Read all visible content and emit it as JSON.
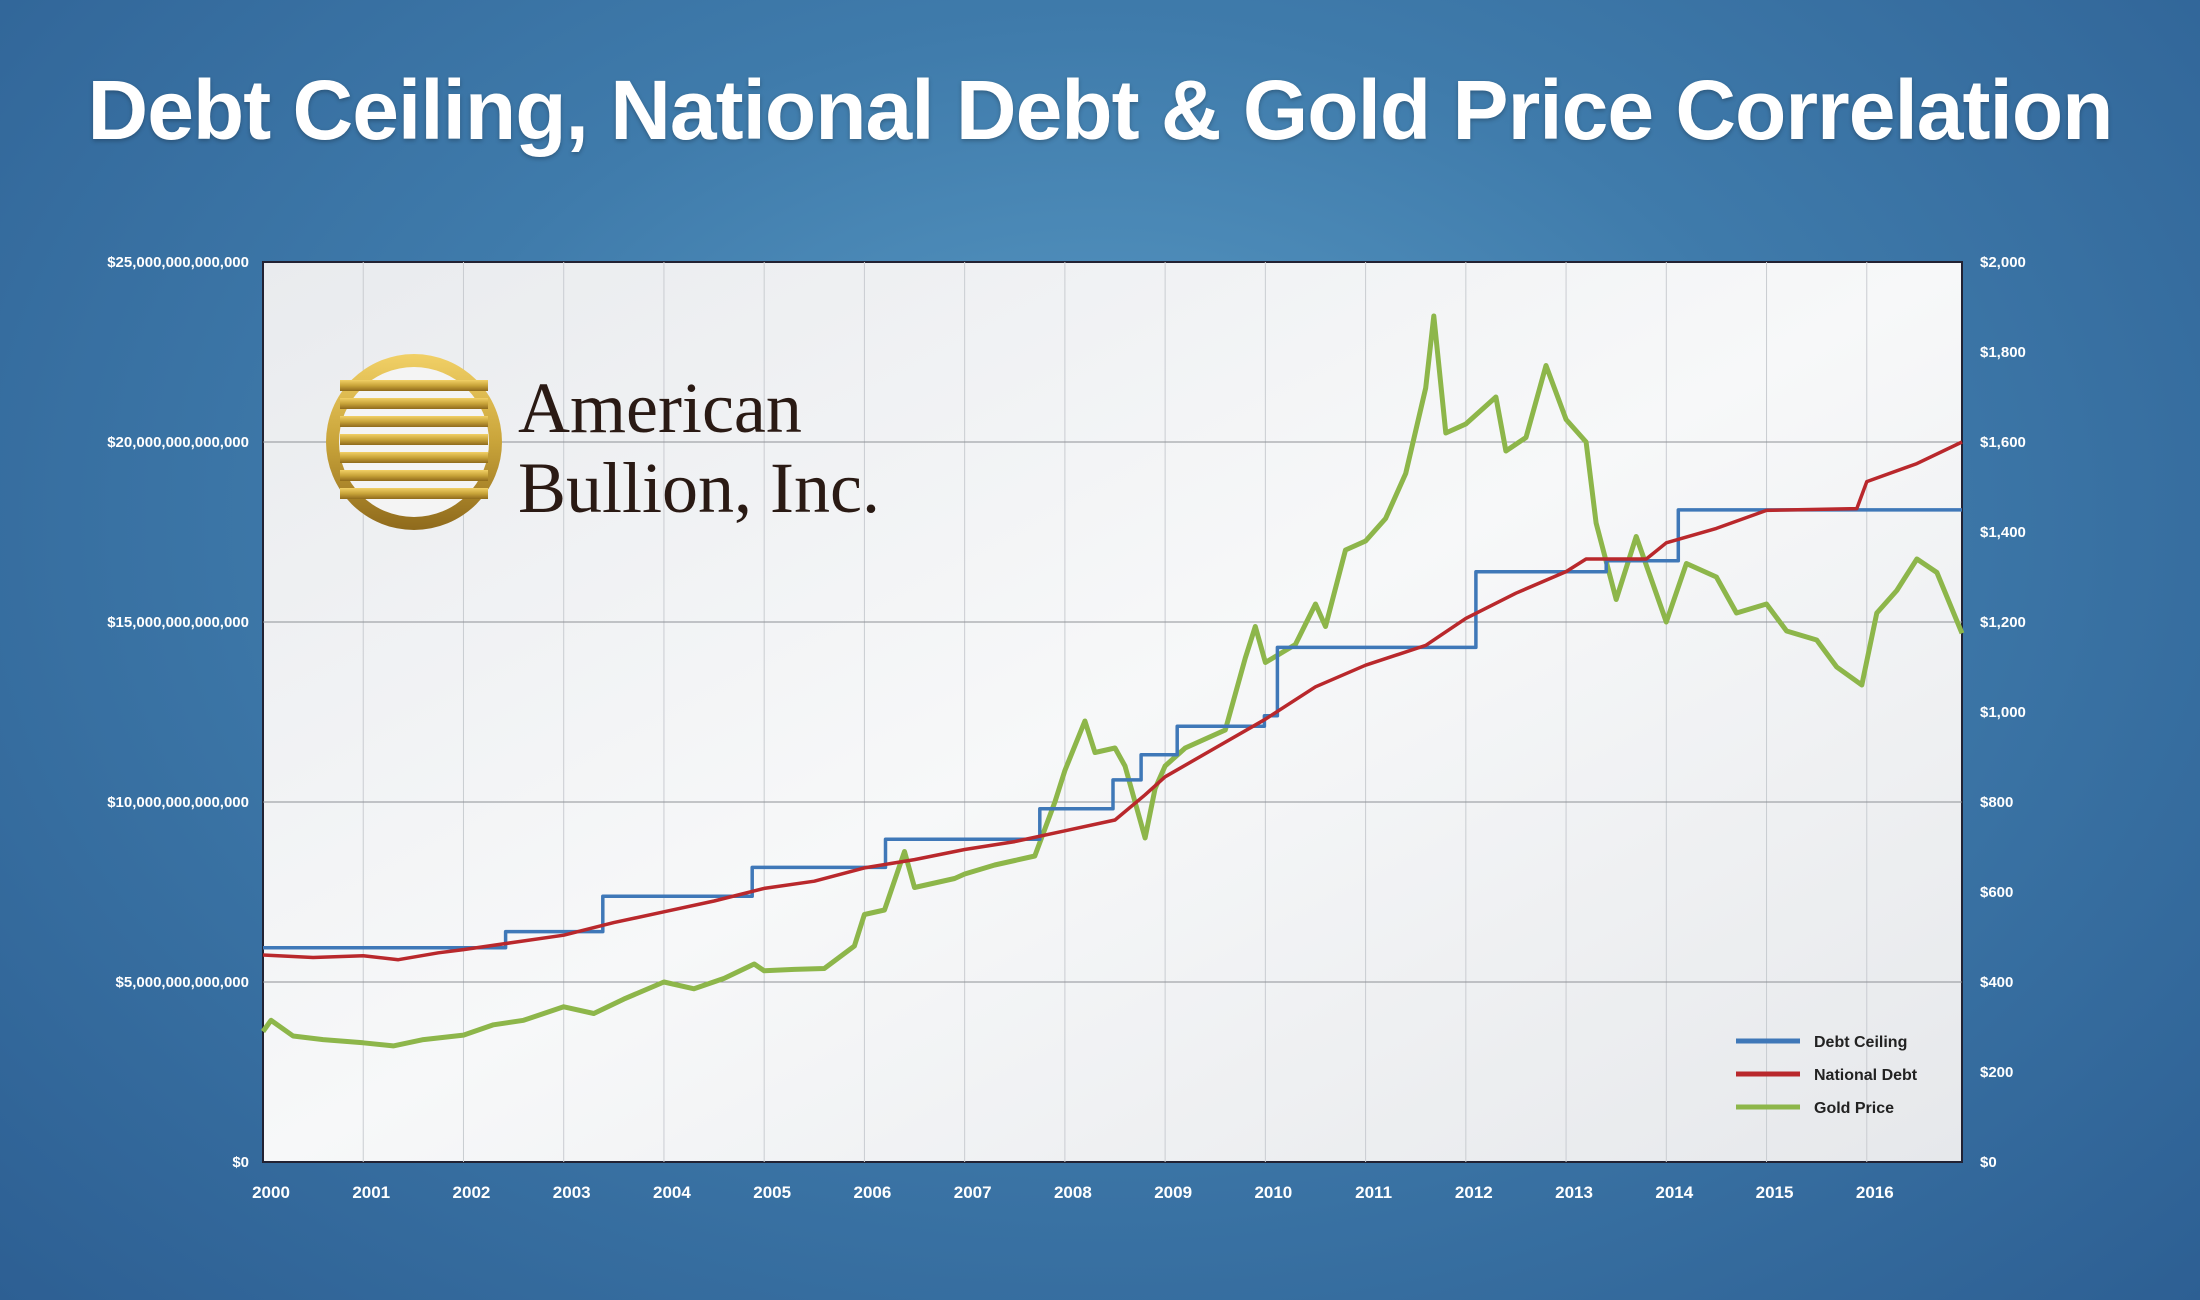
{
  "title": "Debt Ceiling, National Debt & Gold Price Correlation",
  "logo": {
    "line1": "American",
    "line2": "Bullion, Inc."
  },
  "colors": {
    "debt_ceiling": "#3f78b8",
    "national_debt": "#b9282c",
    "gold_price": "#8db64a",
    "logo_gold": "#c9a43a"
  },
  "chart_data": {
    "type": "line",
    "title": "Debt Ceiling, National Debt & Gold Price Correlation",
    "xlabel": "",
    "ylabel_left": "",
    "ylabel_right": "",
    "x_ticks": [
      "2000",
      "2001",
      "2002",
      "2003",
      "2004",
      "2005",
      "2006",
      "2007",
      "2008",
      "2009",
      "2010",
      "2011",
      "2012",
      "2013",
      "2014",
      "2015",
      "2016"
    ],
    "xlim": [
      2000,
      2016.95
    ],
    "y_left_ticks": [
      "$0",
      "$5,000,000,000,000",
      "$10,000,000,000,000",
      "$15,000,000,000,000",
      "$20,000,000,000,000",
      "$25,000,000,000,000"
    ],
    "y_left_range": [
      0,
      25000000000000
    ],
    "y_right_ticks": [
      "$0",
      "$200",
      "$400",
      "$600",
      "$800",
      "$1,000",
      "$1,200",
      "$1,400",
      "$1,600",
      "$1,800",
      "$2,000"
    ],
    "y_right_range": [
      0,
      2000
    ],
    "grid": true,
    "legend_position": "bottom-right",
    "series": [
      {
        "name": "Debt Ceiling",
        "axis": "left",
        "step": true,
        "points": [
          [
            2000,
            5950000000000.0
          ],
          [
            2002.42,
            6400000000000.0
          ],
          [
            2003.39,
            7384000000000.0
          ],
          [
            2004.88,
            8184000000000.0
          ],
          [
            2006.21,
            8965000000000.0
          ],
          [
            2007.75,
            9815000000000.0
          ],
          [
            2008.48,
            10615000000000.0
          ],
          [
            2008.76,
            11315000000000.0
          ],
          [
            2009.12,
            12104000000000.0
          ],
          [
            2009.99,
            12394000000000.0
          ],
          [
            2010.12,
            14294000000000.0
          ],
          [
            2012.1,
            16394000000000.0
          ],
          [
            2013.4,
            16700000000000.0
          ],
          [
            2014.12,
            18113000000000.0
          ],
          [
            2016.95,
            18113000000000.0
          ]
        ]
      },
      {
        "name": "National Debt",
        "axis": "left",
        "points": [
          [
            2000,
            5750000000000.0
          ],
          [
            2000.5,
            5680000000000.0
          ],
          [
            2001,
            5730000000000.0
          ],
          [
            2001.35,
            5620000000000.0
          ],
          [
            2001.75,
            5810000000000.0
          ],
          [
            2002,
            5900000000000.0
          ],
          [
            2002.5,
            6100000000000.0
          ],
          [
            2003,
            6300000000000.0
          ],
          [
            2003.5,
            6650000000000.0
          ],
          [
            2004,
            6950000000000.0
          ],
          [
            2004.5,
            7250000000000.0
          ],
          [
            2005,
            7600000000000.0
          ],
          [
            2005.5,
            7800000000000.0
          ],
          [
            2006,
            8170000000000.0
          ],
          [
            2006.5,
            8400000000000.0
          ],
          [
            2007,
            8680000000000.0
          ],
          [
            2007.5,
            8900000000000.0
          ],
          [
            2008,
            9200000000000.0
          ],
          [
            2008.5,
            9500000000000.0
          ],
          [
            2008.8,
            10200000000000.0
          ],
          [
            2009,
            10700000000000.0
          ],
          [
            2009.5,
            11500000000000.0
          ],
          [
            2010,
            12300000000000.0
          ],
          [
            2010.5,
            13200000000000.0
          ],
          [
            2011,
            13800000000000.0
          ],
          [
            2011.6,
            14350000000000.0
          ],
          [
            2012,
            15100000000000.0
          ],
          [
            2012.5,
            15800000000000.0
          ],
          [
            2013,
            16400000000000.0
          ],
          [
            2013.2,
            16750000000000.0
          ],
          [
            2013.8,
            16750000000000.0
          ],
          [
            2014,
            17200000000000.0
          ],
          [
            2014.5,
            17600000000000.0
          ],
          [
            2015,
            18100000000000.0
          ],
          [
            2015.9,
            18150000000000.0
          ],
          [
            2016,
            18900000000000.0
          ],
          [
            2016.5,
            19400000000000.0
          ],
          [
            2016.95,
            20000000000000.0
          ]
        ]
      },
      {
        "name": "Gold Price",
        "axis": "right",
        "points": [
          [
            2000,
            290
          ],
          [
            2000.08,
            315
          ],
          [
            2000.3,
            280
          ],
          [
            2000.6,
            272
          ],
          [
            2001,
            265
          ],
          [
            2001.3,
            258
          ],
          [
            2001.6,
            272
          ],
          [
            2002,
            282
          ],
          [
            2002.3,
            305
          ],
          [
            2002.6,
            315
          ],
          [
            2003,
            345
          ],
          [
            2003.3,
            330
          ],
          [
            2003.6,
            362
          ],
          [
            2004,
            400
          ],
          [
            2004.3,
            385
          ],
          [
            2004.6,
            408
          ],
          [
            2004.9,
            440
          ],
          [
            2005,
            425
          ],
          [
            2005.3,
            428
          ],
          [
            2005.6,
            430
          ],
          [
            2005.9,
            480
          ],
          [
            2006,
            550
          ],
          [
            2006.2,
            560
          ],
          [
            2006.4,
            690
          ],
          [
            2006.5,
            610
          ],
          [
            2006.7,
            620
          ],
          [
            2006.9,
            630
          ],
          [
            2007,
            640
          ],
          [
            2007.3,
            660
          ],
          [
            2007.5,
            670
          ],
          [
            2007.7,
            680
          ],
          [
            2007.9,
            800
          ],
          [
            2008,
            870
          ],
          [
            2008.2,
            980
          ],
          [
            2008.3,
            910
          ],
          [
            2008.5,
            920
          ],
          [
            2008.6,
            880
          ],
          [
            2008.8,
            720
          ],
          [
            2008.9,
            830
          ],
          [
            2009,
            880
          ],
          [
            2009.2,
            920
          ],
          [
            2009.4,
            940
          ],
          [
            2009.6,
            960
          ],
          [
            2009.8,
            1120
          ],
          [
            2009.9,
            1190
          ],
          [
            2010,
            1110
          ],
          [
            2010.3,
            1150
          ],
          [
            2010.5,
            1240
          ],
          [
            2010.6,
            1190
          ],
          [
            2010.8,
            1360
          ],
          [
            2011,
            1380
          ],
          [
            2011.2,
            1430
          ],
          [
            2011.4,
            1530
          ],
          [
            2011.6,
            1720
          ],
          [
            2011.68,
            1880
          ],
          [
            2011.8,
            1620
          ],
          [
            2012,
            1640
          ],
          [
            2012.3,
            1700
          ],
          [
            2012.4,
            1580
          ],
          [
            2012.6,
            1610
          ],
          [
            2012.8,
            1770
          ],
          [
            2013,
            1650
          ],
          [
            2013.2,
            1600
          ],
          [
            2013.3,
            1420
          ],
          [
            2013.5,
            1250
          ],
          [
            2013.7,
            1390
          ],
          [
            2014,
            1200
          ],
          [
            2014.2,
            1330
          ],
          [
            2014.5,
            1300
          ],
          [
            2014.7,
            1220
          ],
          [
            2015,
            1240
          ],
          [
            2015.2,
            1180
          ],
          [
            2015.5,
            1160
          ],
          [
            2015.7,
            1100
          ],
          [
            2015.95,
            1060
          ],
          [
            2016.1,
            1220
          ],
          [
            2016.3,
            1270
          ],
          [
            2016.5,
            1340
          ],
          [
            2016.7,
            1310
          ],
          [
            2016.95,
            1175
          ]
        ]
      }
    ]
  }
}
